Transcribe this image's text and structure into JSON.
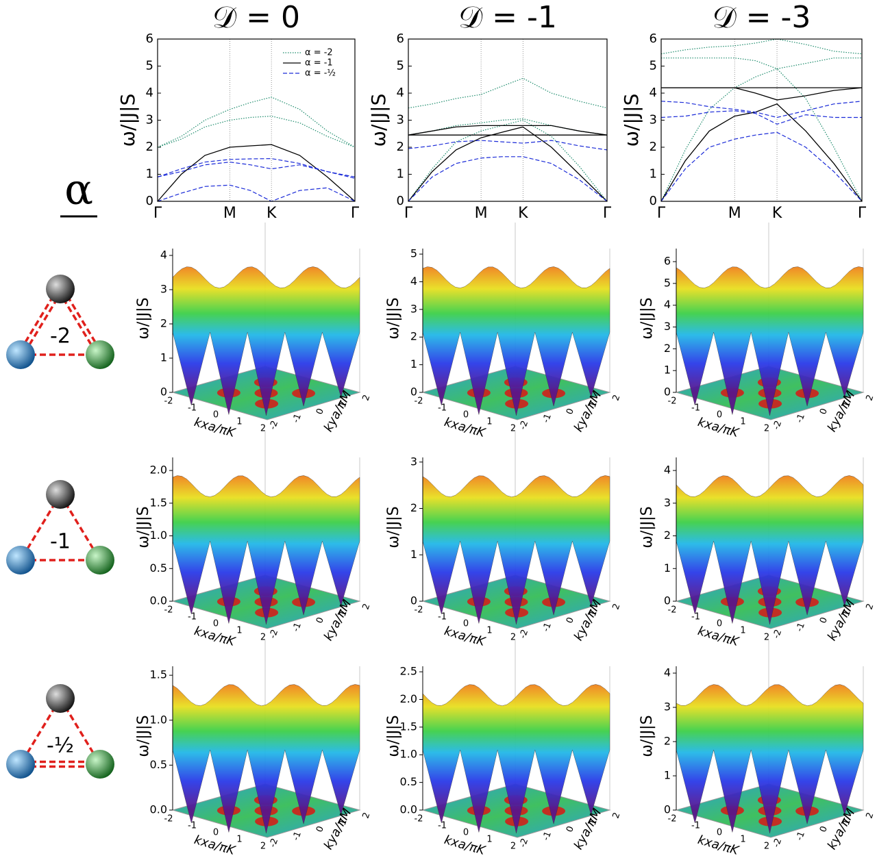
{
  "row_title": "α",
  "rows": [
    {
      "label": "-2"
    },
    {
      "label": "-1"
    },
    {
      "label": "-½"
    }
  ],
  "chart_data": [
    {
      "type": "line",
      "title": "𝒟 = 0",
      "ylabel": "ω/|J|S",
      "legend": "upper right",
      "x": [
        0,
        0.12,
        0.24,
        0.366,
        0.47,
        0.577,
        0.72,
        0.86,
        1
      ],
      "xlim": [
        0,
        1
      ],
      "ylim": [
        0,
        6
      ],
      "yticks": [
        0,
        1,
        2,
        3,
        4,
        5,
        6
      ],
      "xticks": [
        {
          "value": 0,
          "label": "Γ"
        },
        {
          "value": 0.366,
          "label": "M"
        },
        {
          "value": 0.577,
          "label": "K"
        },
        {
          "value": 1,
          "label": "Γ"
        }
      ],
      "series": [
        {
          "name": "α = -2",
          "color": "#1a8a6a",
          "style": "dotted",
          "branches": [
            [
              2.0,
              2.4,
              3.0,
              3.4,
              3.65,
              3.85,
              3.4,
              2.6,
              2.0
            ],
            [
              2.0,
              2.3,
              2.75,
              3.0,
              3.1,
              3.15,
              2.9,
              2.4,
              2.0
            ]
          ]
        },
        {
          "name": "α = -1",
          "color": "#000000",
          "style": "solid",
          "branches": [
            [
              0,
              1.0,
              1.7,
              2.0,
              2.05,
              2.1,
              1.7,
              0.9,
              0
            ]
          ]
        },
        {
          "name": "α = -½",
          "color": "#1a2ad8",
          "style": "dashed",
          "branches": [
            [
              0.9,
              1.2,
              1.45,
              1.55,
              1.57,
              1.58,
              1.4,
              1.1,
              0.85
            ],
            [
              0.9,
              1.1,
              1.35,
              1.45,
              1.35,
              1.2,
              1.35,
              1.1,
              0.9
            ],
            [
              0,
              0.3,
              0.55,
              0.6,
              0.4,
              0,
              0.4,
              0.5,
              0
            ]
          ]
        }
      ]
    },
    {
      "type": "line",
      "title": "𝒟 = -1",
      "ylabel": "ω/|J|S",
      "x": [
        0,
        0.12,
        0.24,
        0.366,
        0.47,
        0.577,
        0.72,
        0.86,
        1
      ],
      "xlim": [
        0,
        1
      ],
      "ylim": [
        0,
        6
      ],
      "yticks": [
        0,
        1,
        2,
        3,
        4,
        5,
        6
      ],
      "xticks": [
        {
          "value": 0,
          "label": "Γ"
        },
        {
          "value": 0.366,
          "label": "M"
        },
        {
          "value": 0.577,
          "label": "K"
        },
        {
          "value": 1,
          "label": "Γ"
        }
      ],
      "series": [
        {
          "color": "#1a8a6a",
          "style": "dotted",
          "branches": [
            [
              3.45,
              3.6,
              3.8,
              3.95,
              4.25,
              4.55,
              4.0,
              3.7,
              3.45
            ],
            [
              2.45,
              2.6,
              2.8,
              2.9,
              3.0,
              3.05,
              2.8,
              2.6,
              2.45
            ],
            [
              0,
              1.2,
              2.2,
              2.6,
              2.8,
              3.0,
              2.4,
              1.3,
              0
            ]
          ]
        },
        {
          "color": "#000000",
          "style": "solid",
          "branches": [
            [
              2.45,
              2.6,
              2.75,
              2.8,
              2.8,
              2.8,
              2.8,
              2.6,
              2.45
            ],
            [
              2.45,
              2.45,
              2.45,
              2.45,
              2.45,
              2.45,
              2.45,
              2.45,
              2.45
            ],
            [
              0,
              1.1,
              1.9,
              2.35,
              2.55,
              2.75,
              2.0,
              1.0,
              0
            ]
          ]
        },
        {
          "color": "#1a2ad8",
          "style": "dashed",
          "branches": [
            [
              1.95,
              2.05,
              2.2,
              2.25,
              2.2,
              2.15,
              2.25,
              2.05,
              1.9
            ],
            [
              0,
              0.9,
              1.4,
              1.6,
              1.65,
              1.65,
              1.4,
              0.8,
              0
            ]
          ]
        }
      ]
    },
    {
      "type": "line",
      "title": "𝒟 = -3",
      "ylabel": "ω/|J|S",
      "x": [
        0,
        0.12,
        0.24,
        0.366,
        0.47,
        0.577,
        0.72,
        0.86,
        1
      ],
      "xlim": [
        0,
        1
      ],
      "ylim": [
        0,
        6
      ],
      "yticks": [
        0,
        1,
        2,
        3,
        4,
        5,
        6
      ],
      "xticks": [
        {
          "value": 0,
          "label": "Γ"
        },
        {
          "value": 0.366,
          "label": "M"
        },
        {
          "value": 0.577,
          "label": "K"
        },
        {
          "value": 1,
          "label": "Γ"
        }
      ],
      "series": [
        {
          "color": "#1a8a6a",
          "style": "dotted",
          "branches": [
            [
              5.45,
              5.6,
              5.7,
              5.75,
              5.85,
              6.0,
              5.8,
              5.55,
              5.45
            ],
            [
              5.3,
              5.3,
              5.3,
              5.3,
              5.2,
              4.9,
              5.1,
              5.3,
              5.3
            ],
            [
              0,
              1.9,
              3.4,
              4.2,
              4.6,
              4.9,
              3.8,
              2.0,
              0
            ]
          ]
        },
        {
          "color": "#000000",
          "style": "solid",
          "branches": [
            [
              4.2,
              4.2,
              4.2,
              4.2,
              4.2,
              4.2,
              4.2,
              4.2,
              4.2
            ],
            [
              4.2,
              4.2,
              4.2,
              4.2,
              4.0,
              3.75,
              3.9,
              4.1,
              4.2
            ],
            [
              0,
              1.5,
              2.6,
              3.15,
              3.3,
              3.6,
              2.6,
              1.4,
              0
            ]
          ]
        },
        {
          "color": "#1a2ad8",
          "style": "dashed",
          "branches": [
            [
              3.7,
              3.65,
              3.5,
              3.4,
              3.3,
              3.1,
              3.35,
              3.6,
              3.7
            ],
            [
              3.1,
              3.15,
              3.3,
              3.35,
              3.25,
              2.85,
              3.2,
              3.1,
              3.1
            ],
            [
              0,
              1.2,
              2.0,
              2.3,
              2.45,
              2.55,
              2.0,
              1.1,
              0
            ]
          ]
        }
      ]
    }
  ],
  "surface_axes": {
    "zlabel": "ω/|J|S",
    "xlabel": "kxa/πK",
    "ylabel": "kya/πM",
    "kticks": [
      -2,
      -1,
      0,
      1,
      2
    ]
  },
  "surfaces": [
    [
      {
        "zlim": [
          0,
          4.2
        ],
        "zticks": [
          0,
          1,
          2,
          3,
          4
        ]
      },
      {
        "zlim": [
          0,
          5.2
        ],
        "zticks": [
          0,
          1,
          2,
          3,
          4,
          5
        ]
      },
      {
        "zlim": [
          0,
          6.6
        ],
        "zticks": [
          0,
          1,
          2,
          3,
          4,
          5,
          6
        ]
      }
    ],
    [
      {
        "zlim": [
          0,
          2.2
        ],
        "zticks": [
          {
            "value": 0,
            "label": "0.0"
          },
          0.5,
          {
            "value": 1,
            "label": "1.0"
          },
          1.5,
          {
            "value": 2,
            "label": "2.0"
          }
        ]
      },
      {
        "zlim": [
          0,
          3.1
        ],
        "zticks": [
          0,
          1,
          2,
          3
        ]
      },
      {
        "zlim": [
          0,
          4.4
        ],
        "zticks": [
          0,
          1,
          2,
          3,
          4
        ]
      }
    ],
    [
      {
        "zlim": [
          0,
          1.6
        ],
        "zticks": [
          {
            "value": 0,
            "label": "0.0"
          },
          0.5,
          {
            "value": 1,
            "label": "1.0"
          },
          1.5
        ]
      },
      {
        "zlim": [
          0,
          2.6
        ],
        "zticks": [
          {
            "value": 0,
            "label": "0.0"
          },
          0.5,
          {
            "value": 1,
            "label": "1.0"
          },
          1.5,
          {
            "value": 2,
            "label": "2.0"
          },
          2.5
        ]
      },
      {
        "zlim": [
          0,
          4.2
        ],
        "zticks": [
          0,
          1,
          2,
          3,
          4
        ]
      }
    ]
  ]
}
